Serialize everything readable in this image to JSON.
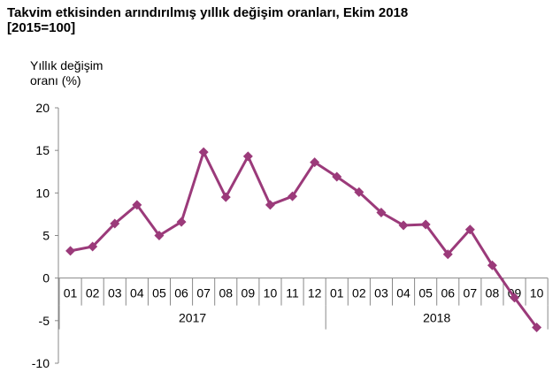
{
  "chart_data": {
    "type": "line",
    "title": "Takvim etkisinden arındırılmış yıllık değişim oranları, Ekim 2018",
    "subtitle": "[2015=100]",
    "ylabel_line1": "Yıllık değişim",
    "ylabel_line2": "oranı (%)",
    "xlabel": "",
    "ylim": [
      -10,
      20
    ],
    "yticks": [
      -10,
      -5,
      0,
      5,
      10,
      15,
      20
    ],
    "grid": false,
    "categories": [
      "01",
      "02",
      "03",
      "04",
      "05",
      "06",
      "07",
      "08",
      "09",
      "10",
      "11",
      "12",
      "01",
      "02",
      "03",
      "04",
      "05",
      "06",
      "07",
      "08",
      "09",
      "10"
    ],
    "groups": [
      {
        "label": "2017",
        "start": 0,
        "count": 12
      },
      {
        "label": "2018",
        "start": 12,
        "count": 10
      }
    ],
    "series": [
      {
        "values": [
          3.2,
          3.7,
          6.4,
          8.6,
          5.0,
          6.6,
          14.8,
          9.5,
          14.3,
          8.6,
          9.6,
          13.6,
          11.9,
          10.1,
          7.7,
          6.2,
          6.3,
          2.8,
          5.7,
          1.5,
          -2.3,
          -5.8
        ],
        "color": "#9b3a7a"
      }
    ]
  }
}
